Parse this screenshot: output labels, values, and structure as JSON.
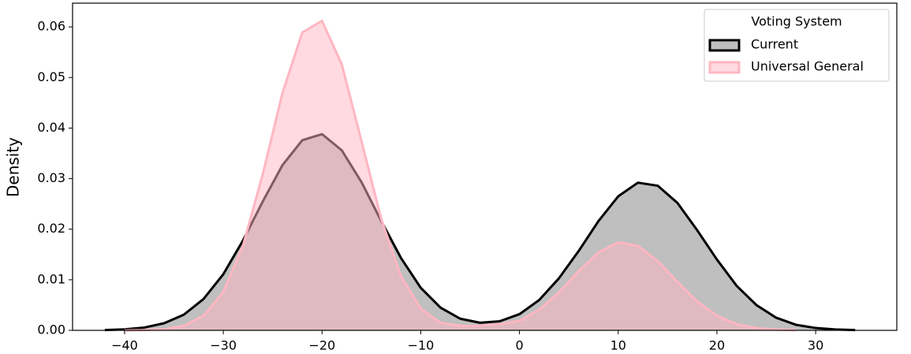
{
  "chart_data": {
    "type": "kde",
    "y_label": "Density",
    "x": [
      -42,
      -40,
      -38,
      -36,
      -34,
      -32,
      -30,
      -28,
      -26,
      -24,
      -22,
      -20,
      -18,
      -16,
      -14,
      -12,
      -10,
      -8,
      -6,
      -4,
      -2,
      0,
      2,
      4,
      6,
      8,
      10,
      12,
      14,
      16,
      18,
      20,
      22,
      24,
      26,
      28,
      30,
      32,
      34
    ],
    "series": [
      {
        "name": "Current",
        "color": "#000000",
        "fill": "#808080",
        "values": [
          6e-05,
          0.0002,
          0.00055,
          0.0014,
          0.0031,
          0.0062,
          0.0111,
          0.0178,
          0.0255,
          0.0327,
          0.0376,
          0.0388,
          0.0356,
          0.0293,
          0.0216,
          0.0143,
          0.0084,
          0.0045,
          0.0023,
          0.0015,
          0.0018,
          0.0032,
          0.006,
          0.0103,
          0.0157,
          0.0216,
          0.0265,
          0.0292,
          0.0286,
          0.0252,
          0.0198,
          0.014,
          0.0088,
          0.005,
          0.0025,
          0.0011,
          0.00046,
          0.00017,
          5e-05
        ]
      },
      {
        "name": "Universal General",
        "color": "#ffb6c1",
        "fill": "#ffb6c1",
        "values": [
          null,
          1e-05,
          5e-05,
          0.0002,
          0.0009,
          0.0029,
          0.0076,
          0.0168,
          0.0309,
          0.047,
          0.0589,
          0.0612,
          0.0526,
          0.0374,
          0.022,
          0.0107,
          0.0043,
          0.0015,
          0.0009,
          0.0009,
          0.0012,
          0.0019,
          0.0041,
          0.0075,
          0.0117,
          0.0154,
          0.0174,
          0.0167,
          0.0137,
          0.0096,
          0.0057,
          0.0029,
          0.0012,
          0.00045,
          0.00014,
          4e-05,
          null,
          null,
          null
        ]
      }
    ],
    "xlim": [
      -45.27,
      38.22
    ],
    "ylim": [
      0,
      0.0647
    ],
    "xticks": [
      {
        "value": -40,
        "label": "−40"
      },
      {
        "value": -30,
        "label": "−30"
      },
      {
        "value": -20,
        "label": "−20"
      },
      {
        "value": -10,
        "label": "−10"
      },
      0,
      10,
      20,
      30
    ],
    "yticks": [
      {
        "value": 0,
        "label": "0.00"
      },
      {
        "value": 0.01,
        "label": "0.01"
      },
      {
        "value": 0.02,
        "label": "0.02"
      },
      {
        "value": 0.03,
        "label": "0.03"
      },
      {
        "value": 0.04,
        "label": "0.04"
      },
      {
        "value": 0.05,
        "label": "0.05"
      },
      {
        "value": 0.06,
        "label": "0.06"
      }
    ],
    "legend": {
      "title": "Voting System",
      "position": "upper right"
    },
    "fill_opacity": 0.5
  }
}
